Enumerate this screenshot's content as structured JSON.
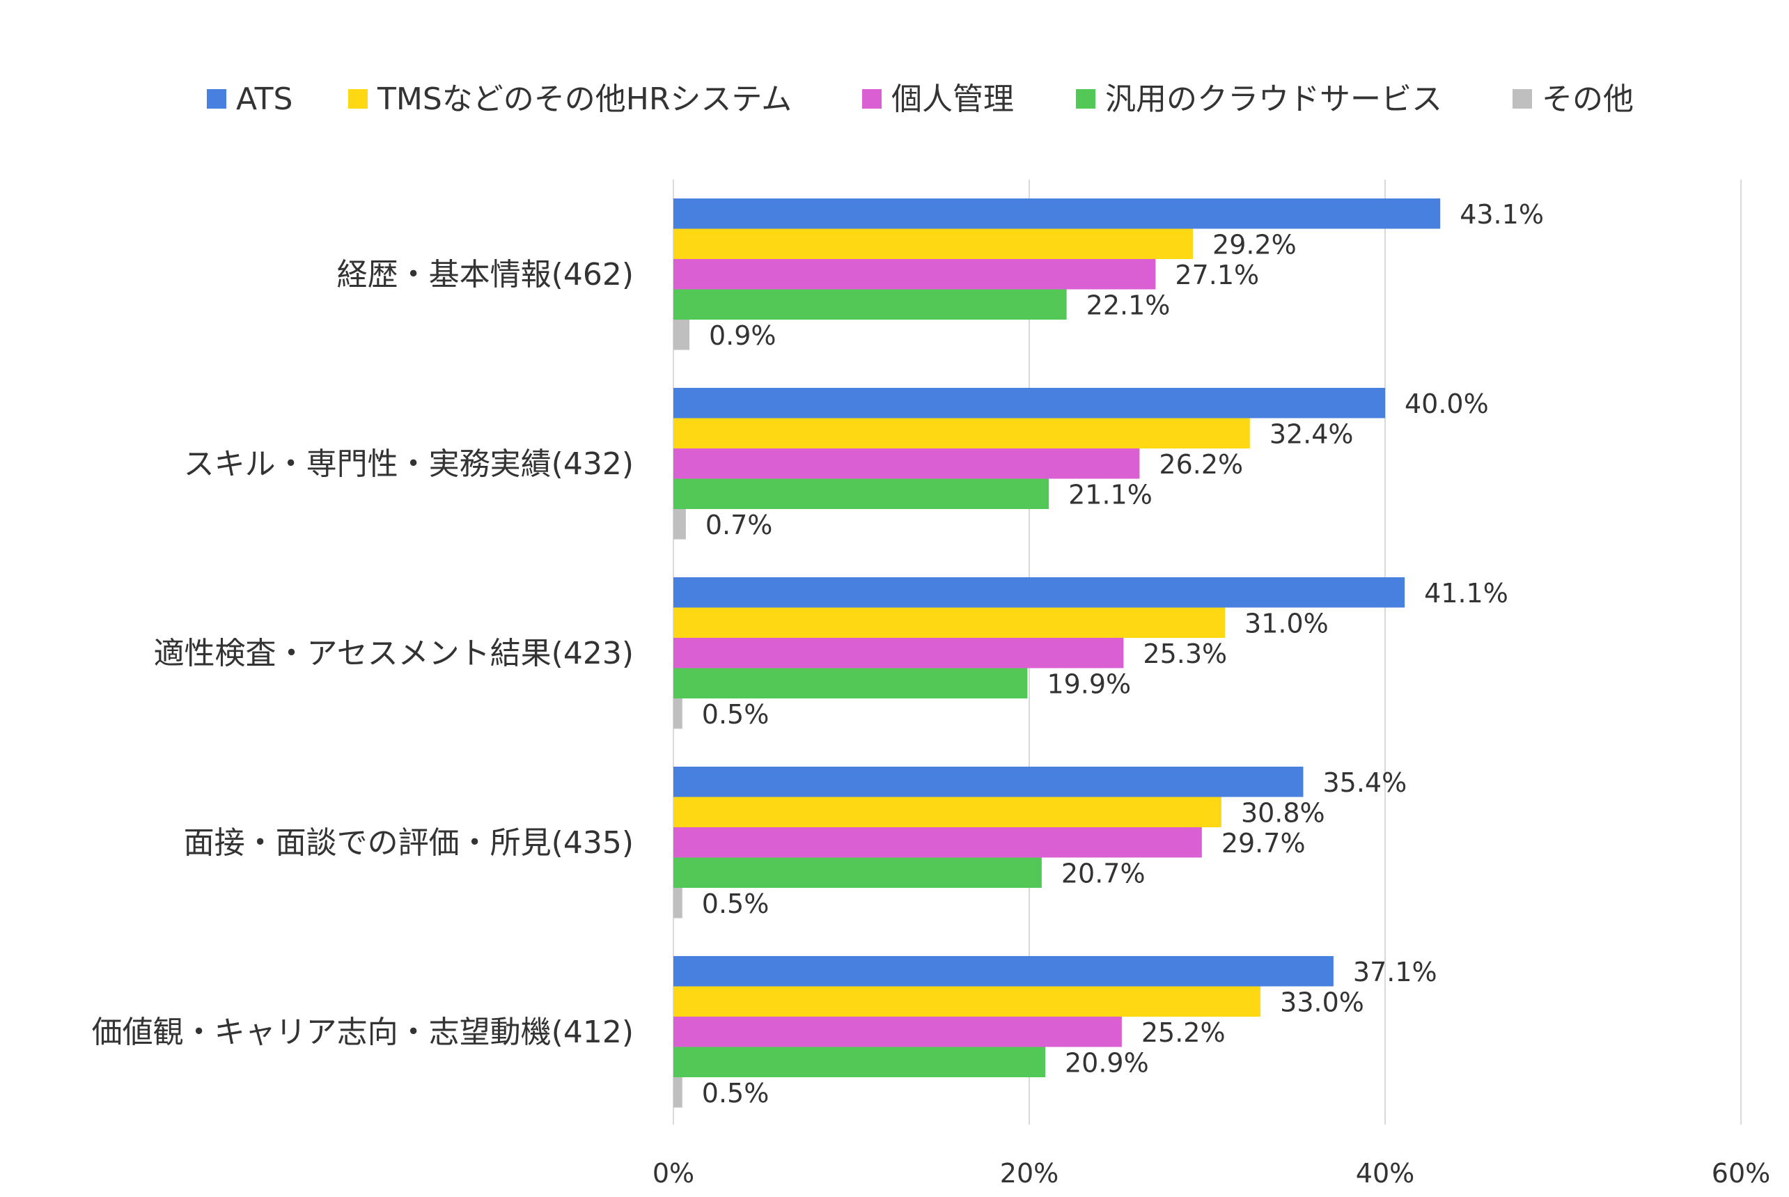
{
  "chart_data": {
    "type": "bar",
    "orientation": "horizontal",
    "legend_position": "top",
    "grid": true,
    "xlim": [
      0,
      60
    ],
    "x_ticks": [
      0,
      20,
      40,
      60
    ],
    "x_tick_labels": [
      "0%",
      "20%",
      "40%",
      "60%"
    ],
    "categories": [
      "経歴・基本情報(462)",
      "スキル・専門性・実務実績(432)",
      "適性検査・アセスメント結果(423)",
      "面接・面談での評価・所見(435)",
      "価値観・キャリア志向・志望動機(412)"
    ],
    "series": [
      {
        "name": "ATS",
        "color": "#4780DF",
        "values": [
          43.1,
          40.0,
          41.1,
          35.4,
          37.1
        ],
        "labels": [
          "43.1%",
          "40.0%",
          "41.1%",
          "35.4%",
          "37.1%"
        ]
      },
      {
        "name": "TMSなどのその他HRシステム",
        "color": "#FFD814",
        "values": [
          29.2,
          32.4,
          31.0,
          30.8,
          33.0
        ],
        "labels": [
          "29.2%",
          "32.4%",
          "31.0%",
          "30.8%",
          "33.0%"
        ]
      },
      {
        "name": "個人管理",
        "color": "#D95FD3",
        "values": [
          27.1,
          26.2,
          25.3,
          29.7,
          25.2
        ],
        "labels": [
          "27.1%",
          "26.2%",
          "25.3%",
          "29.7%",
          "25.2%"
        ]
      },
      {
        "name": "汎用のクラウドサービス",
        "color": "#52C856",
        "values": [
          22.1,
          21.1,
          19.9,
          20.7,
          20.9
        ],
        "labels": [
          "22.1%",
          "21.1%",
          "19.9%",
          "20.7%",
          "20.9%"
        ]
      },
      {
        "name": "その他",
        "color": "#BFBFBF",
        "values": [
          0.9,
          0.7,
          0.5,
          0.5,
          0.5
        ],
        "labels": [
          "0.9%",
          "0.7%",
          "0.5%",
          "0.5%",
          "0.5%"
        ]
      }
    ],
    "gridline_color": "#D9D9D9"
  }
}
